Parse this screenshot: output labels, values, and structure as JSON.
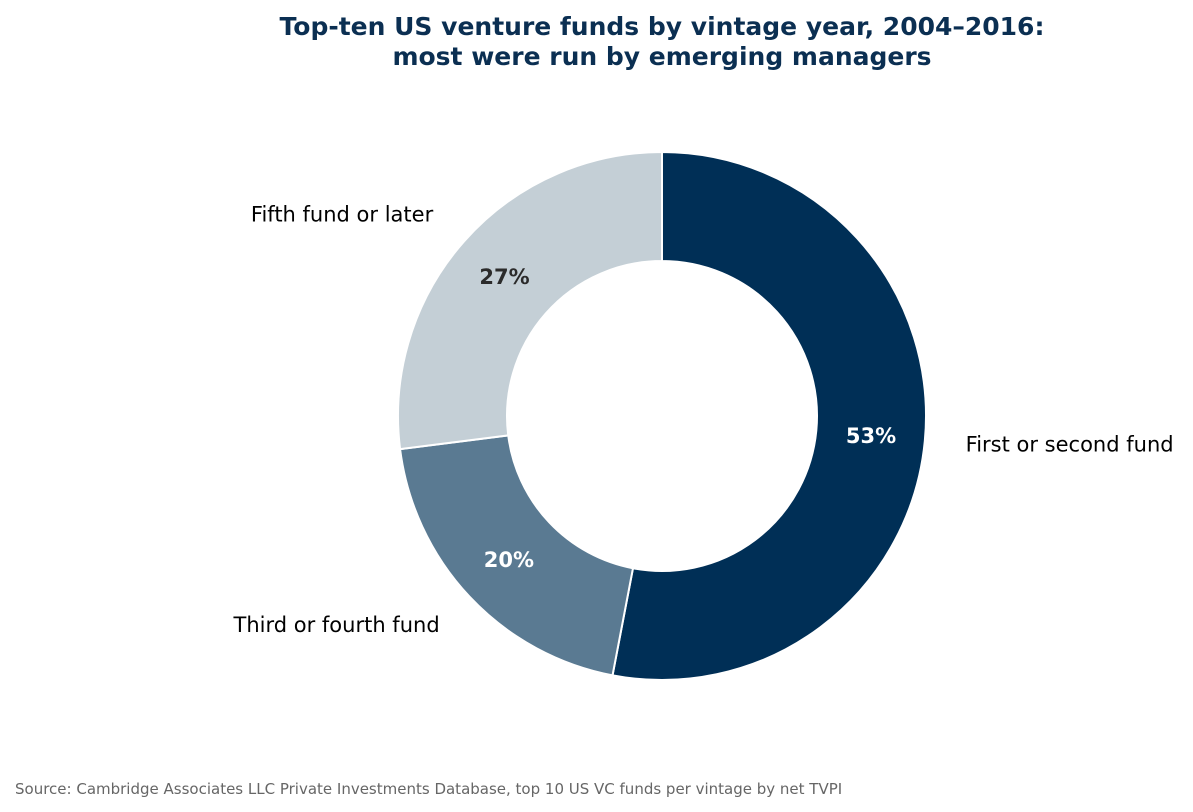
{
  "chart_data": {
    "type": "pie",
    "donut": true,
    "title_lines": [
      "Top-ten US venture funds by vintage year, 2004–2016:",
      "most were run by emerging managers"
    ],
    "categories": [
      "First or second fund",
      "Third or fourth fund",
      "Fifth fund or later"
    ],
    "values": [
      53,
      20,
      27
    ],
    "value_labels": [
      "53%",
      "20%",
      "27%"
    ],
    "colors": [
      "#002f56",
      "#5a7a92",
      "#c4cfd6"
    ],
    "value_label_colors": [
      "#ffffff",
      "#ffffff",
      "#2b2b2b"
    ],
    "start": "top",
    "direction": "clockwise",
    "legend": "none"
  },
  "source": "Source: Cambridge Associates LLC Private Investments Database, top 10 US VC funds per vintage by net TVPI",
  "colors": {
    "title": "#0b2f52",
    "source": "#666666",
    "separator": "#ffffff"
  }
}
